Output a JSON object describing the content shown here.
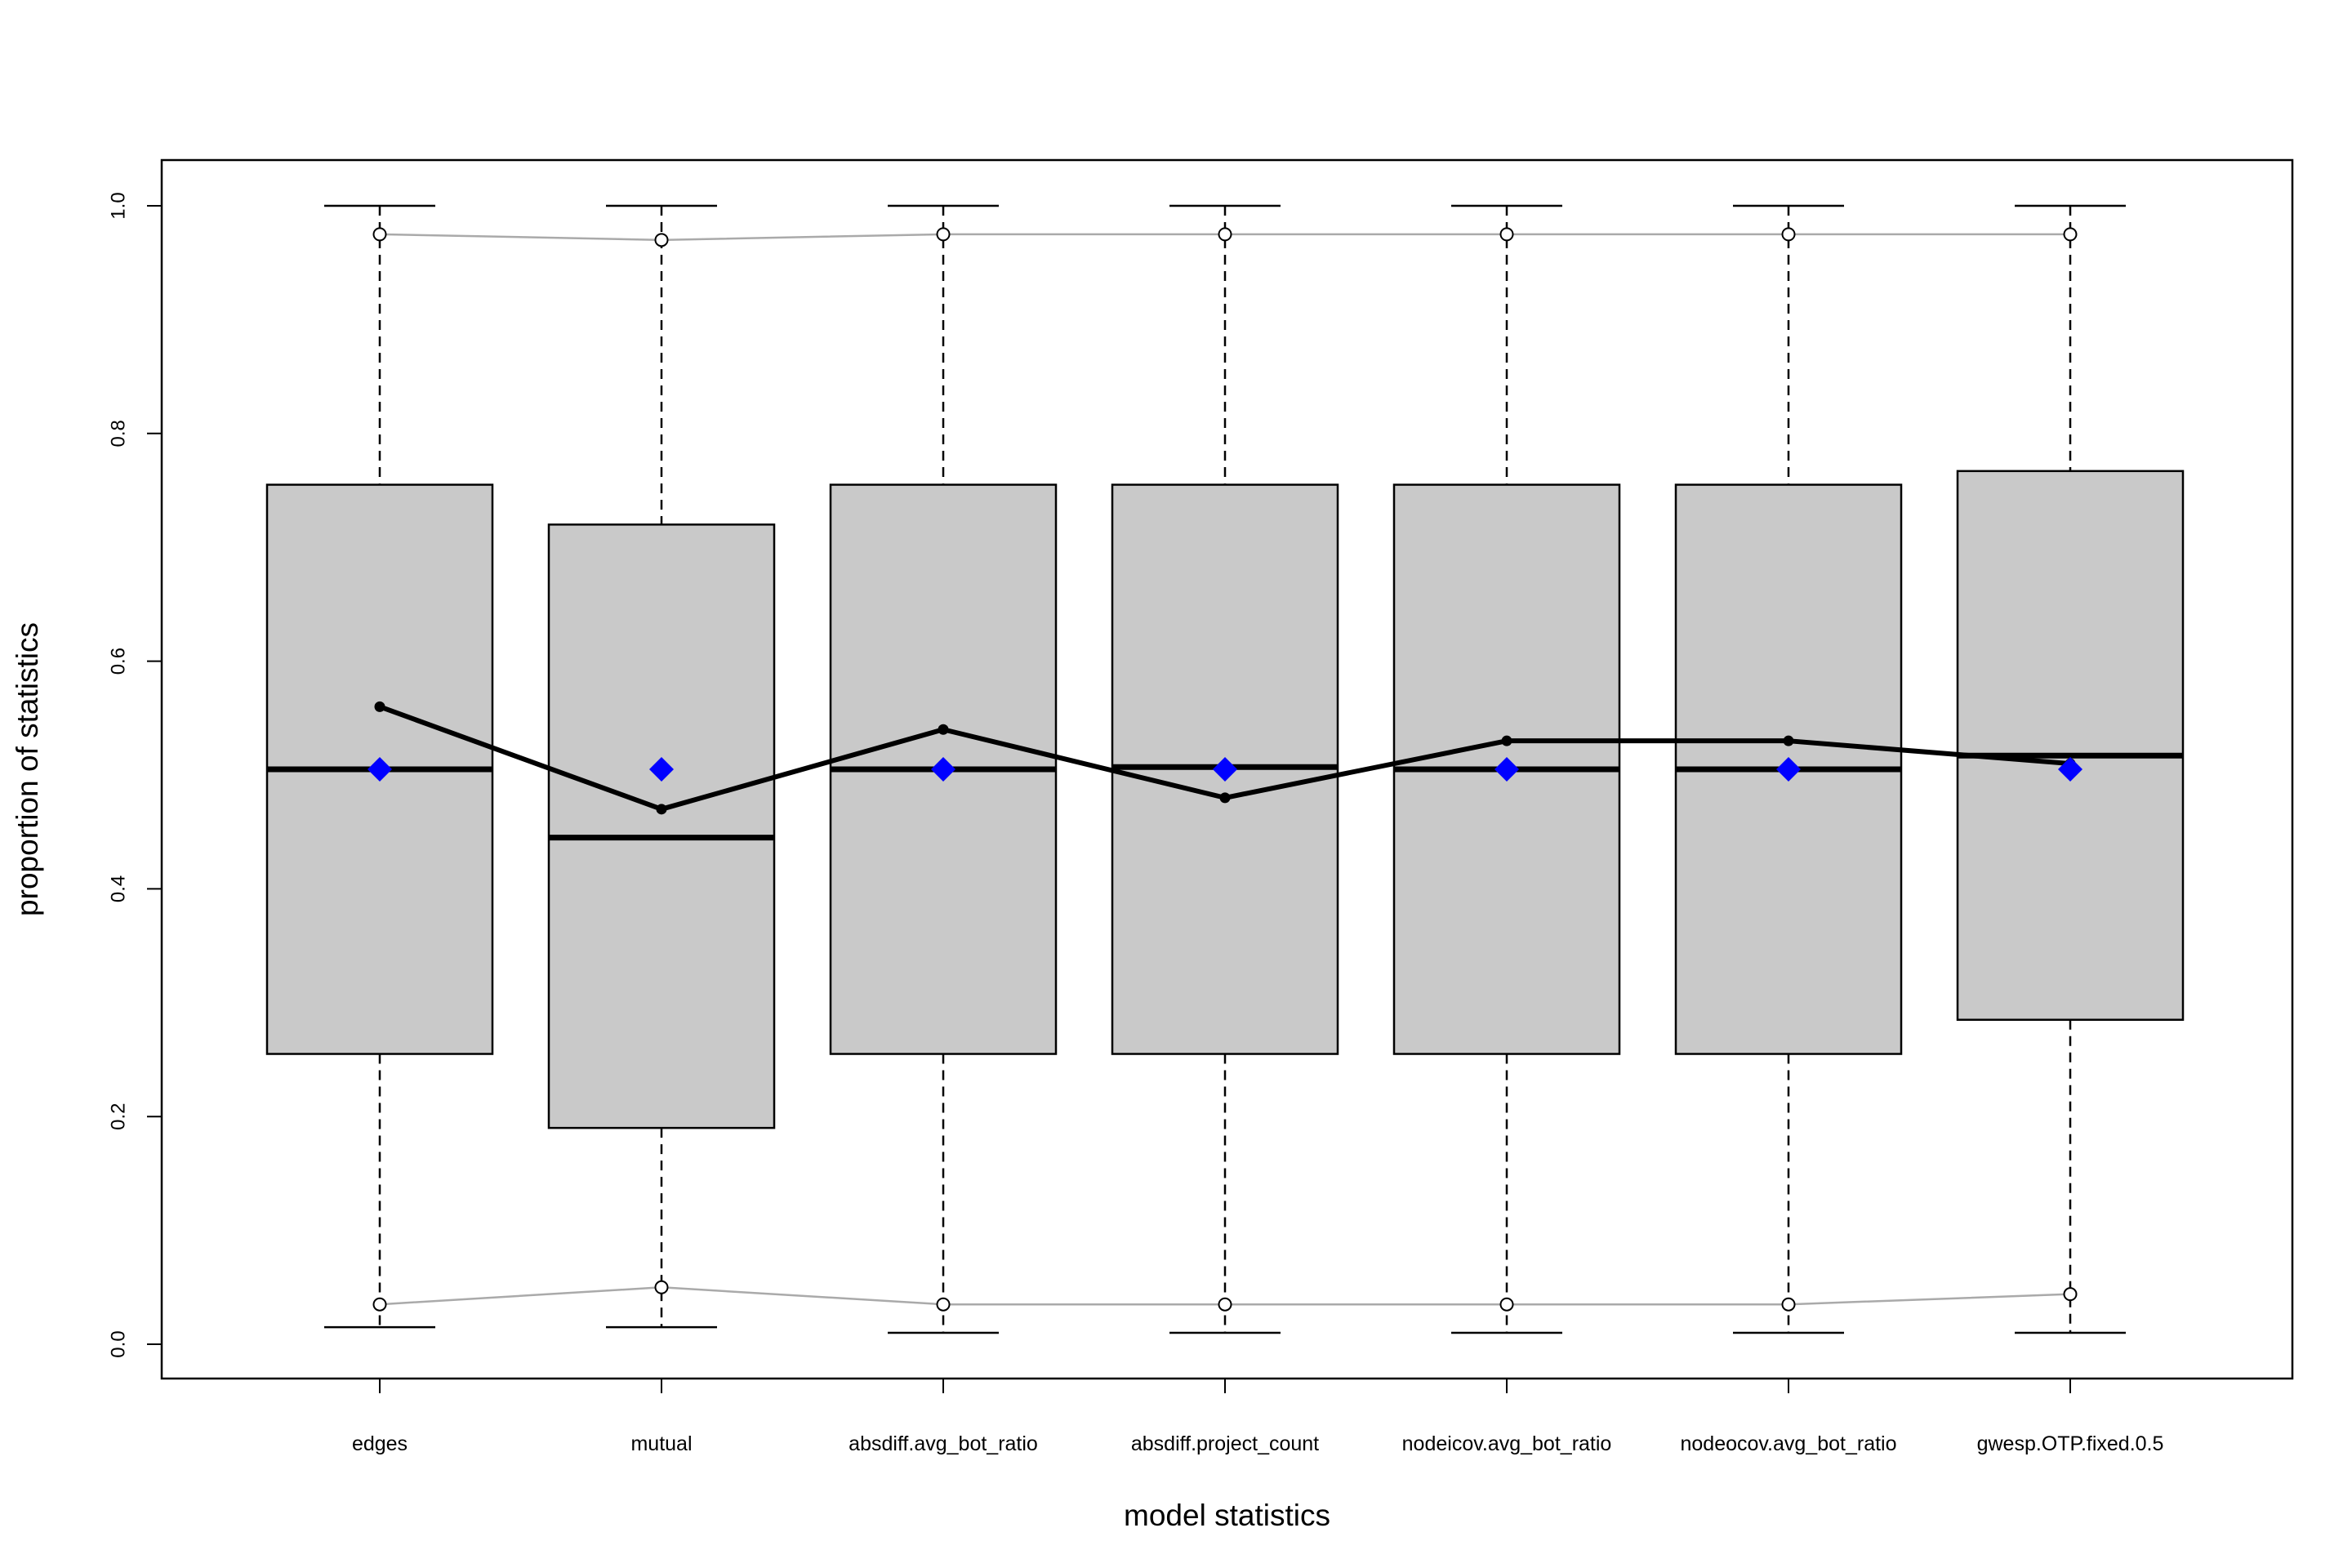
{
  "chart_data": {
    "type": "boxplot",
    "title": "",
    "xlabel": "model statistics",
    "ylabel": "proportion of statistics",
    "ylim": [
      0,
      1.03
    ],
    "yticks": [
      "0.0",
      "0.2",
      "0.4",
      "0.6",
      "0.8",
      "1.0"
    ],
    "categories": [
      "edges",
      "mutual",
      "absdiff.avg_bot_ratio",
      "absdiff.project_count",
      "nodeicov.avg_bot_ratio",
      "nodeocov.avg_bot_ratio",
      "gwesp.OTP.fixed.0.5"
    ],
    "boxes": [
      {
        "whisker_low": 0.015,
        "q1": 0.255,
        "median": 0.505,
        "q3": 0.755,
        "whisker_high": 1.0
      },
      {
        "whisker_low": 0.015,
        "q1": 0.19,
        "median": 0.445,
        "q3": 0.72,
        "whisker_high": 1.0
      },
      {
        "whisker_low": 0.01,
        "q1": 0.255,
        "median": 0.505,
        "q3": 0.755,
        "whisker_high": 1.0
      },
      {
        "whisker_low": 0.01,
        "q1": 0.255,
        "median": 0.507,
        "q3": 0.755,
        "whisker_high": 1.0
      },
      {
        "whisker_low": 0.01,
        "q1": 0.255,
        "median": 0.505,
        "q3": 0.755,
        "whisker_high": 1.0
      },
      {
        "whisker_low": 0.01,
        "q1": 0.255,
        "median": 0.505,
        "q3": 0.755,
        "whisker_high": 1.0
      },
      {
        "whisker_low": 0.01,
        "q1": 0.285,
        "median": 0.517,
        "q3": 0.767,
        "whisker_high": 1.0
      }
    ],
    "series": [
      {
        "values": [
          0.56,
          0.47,
          0.54,
          0.48,
          0.53,
          0.53,
          0.51
        ],
        "style": "thick-line-points",
        "color": "#000000"
      },
      {
        "values": [
          0.505,
          0.505,
          0.505,
          0.505,
          0.505,
          0.505,
          0.505
        ],
        "style": "diamond-points",
        "color": "#0000ff"
      },
      {
        "values": [
          0.975,
          0.97,
          0.975,
          0.975,
          0.975,
          0.975,
          0.975
        ],
        "style": "thin-line-open-points",
        "color": "#aaaaaa"
      },
      {
        "values": [
          0.035,
          0.05,
          0.035,
          0.035,
          0.035,
          0.035,
          0.044
        ],
        "style": "thin-line-open-points",
        "color": "#aaaaaa"
      }
    ],
    "box_fill": "#c9c9c9",
    "grid": false,
    "legend": "none"
  }
}
